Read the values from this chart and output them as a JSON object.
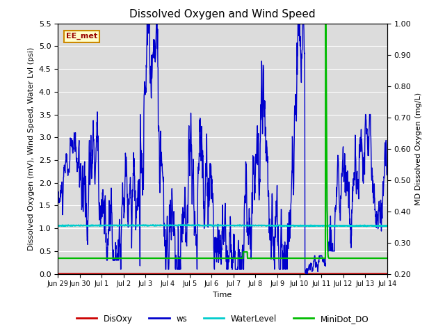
{
  "title": "Dissolved Oxygen and Wind Speed",
  "xlabel": "Time",
  "ylabel_left": "Dissolved Oxygen (mV), Wind Speed, Water Lvl (psi)",
  "ylabel_right": "MD Dissolved Oxygen (mg/L)",
  "annotation_text": "EE_met",
  "ylim_left": [
    0.0,
    5.5
  ],
  "ylim_right": [
    0.2,
    1.0
  ],
  "fig_bg_color": "#ffffff",
  "plot_bg_color": "#dcdcdc",
  "grid_color": "#ffffff",
  "colors": {
    "DisOxy": "#cc0000",
    "ws": "#0000cc",
    "WaterLevel": "#00cccc",
    "MiniDot_DO": "#00bb00"
  },
  "linewidths": {
    "DisOxy": 1.2,
    "ws": 1.0,
    "WaterLevel": 1.5,
    "MiniDot_DO": 1.5
  },
  "x_tick_labels": [
    "Jun 29",
    "Jun 30",
    "Jul 1",
    "Jul 2",
    "Jul 3",
    "Jul 4",
    "Jul 5",
    "Jul 6",
    "Jul 7",
    "Jul 8",
    "Jul 9",
    "Jul 10",
    "Jul 11",
    "Jul 12",
    "Jul 13",
    "Jul 14"
  ],
  "yticks_left": [
    0.0,
    0.5,
    1.0,
    1.5,
    2.0,
    2.5,
    3.0,
    3.5,
    4.0,
    4.5,
    5.0,
    5.5
  ],
  "yticks_right": [
    0.2,
    0.3,
    0.4,
    0.5,
    0.6,
    0.7,
    0.8,
    0.9,
    1.0
  ],
  "title_fontsize": 11,
  "axis_label_fontsize": 8,
  "tick_fontsize": 8,
  "xtick_fontsize": 7
}
